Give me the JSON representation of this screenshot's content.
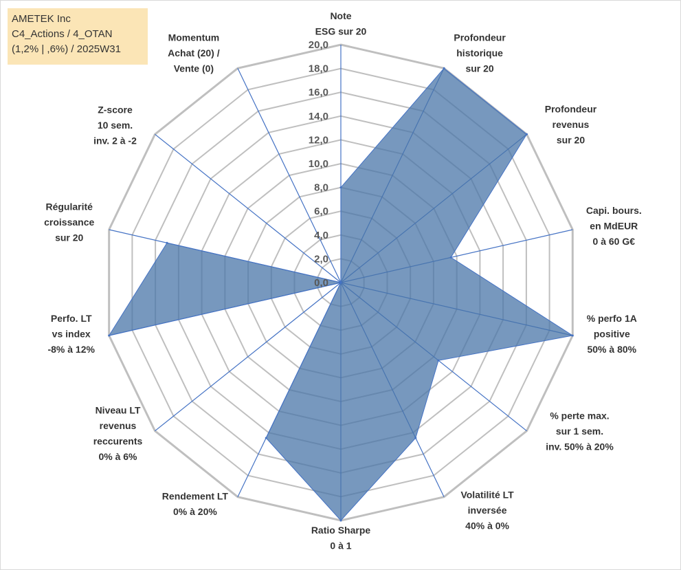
{
  "info_box": {
    "line1": "AMETEK Inc",
    "line2": "C4_Actions / 4_OTAN",
    "line3": "(1,2% | ,6%) / 2025W31"
  },
  "colors": {
    "fill": "#4a76a8",
    "stroke": "#4472c4",
    "grid": "#bfbfbf",
    "spoke": "#4472c4",
    "info_bg": "#fbe5b6"
  },
  "chart_data": {
    "type": "radar",
    "title": "",
    "rlim": [
      0,
      20
    ],
    "rticks": [
      "0,0",
      "2,0",
      "4,0",
      "6,0",
      "8,0",
      "10,0",
      "12,0",
      "14,0",
      "16,0",
      "18,0",
      "20,0"
    ],
    "grid": true,
    "legend": "none",
    "categories": [
      [
        "Note",
        "ESG sur 20"
      ],
      [
        "Profondeur",
        "historique",
        "sur 20"
      ],
      [
        "Profondeur",
        "revenus",
        "sur 20"
      ],
      [
        "Capi. bours.",
        "en MdEUR",
        "0 à 60 G€"
      ],
      [
        "% perfo 1A",
        "positive",
        "50% à 80%"
      ],
      [
        "% perte max.",
        "sur 1 sem.",
        "inv. 50% à 20%"
      ],
      [
        "Volatilité LT",
        "inversée",
        "40% à 0%"
      ],
      [
        "Ratio Sharpe",
        "0 à 1"
      ],
      [
        "Rendement LT",
        "0% à 20%"
      ],
      [
        "Niveau LT",
        "revenus",
        "reccurents",
        "0% à 6%"
      ],
      [
        "Perfo. LT",
        "vs index",
        "-8% à 12%"
      ],
      [
        "Régularité",
        "croissance",
        "sur 20"
      ],
      [
        "Z-score",
        "10 sem.",
        "inv. 2 à -2"
      ],
      [
        "Momentum",
        "Achat (20) /",
        "Vente (0)"
      ]
    ],
    "series": [
      {
        "values": [
          8.0,
          20.0,
          20.0,
          9.5,
          20.0,
          10.5,
          14.5,
          20.0,
          14.5,
          0.0,
          20.0,
          15.0,
          0.0,
          0.0
        ]
      }
    ]
  }
}
